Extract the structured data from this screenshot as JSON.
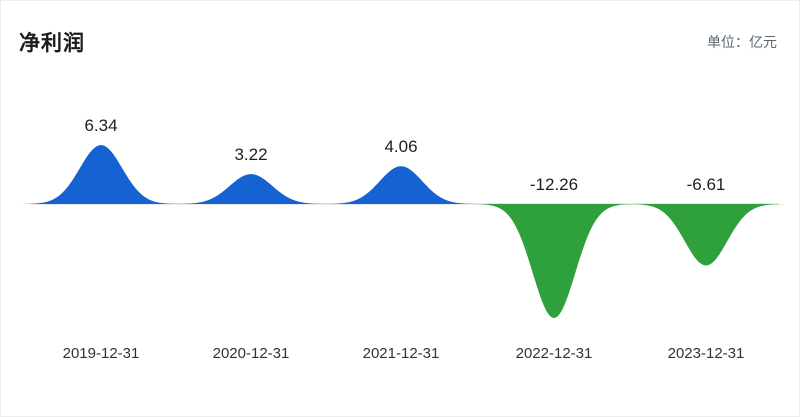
{
  "header": {
    "title": "净利润",
    "unit_label": "单位：亿元"
  },
  "chart_data": {
    "type": "area",
    "title": "净利润",
    "unit": "亿元",
    "categories": [
      "2019-12-31",
      "2020-12-31",
      "2021-12-31",
      "2022-12-31",
      "2023-12-31"
    ],
    "values": [
      6.34,
      3.22,
      4.06,
      -12.26,
      -6.61
    ],
    "value_labels": [
      "6.34",
      "3.22",
      "4.06",
      "-12.26",
      "-6.61"
    ],
    "xlabel": "",
    "ylabel": "",
    "grid": "off",
    "legend": "none",
    "positive_color": "#1562d2",
    "negative_color": "#2fa13c",
    "baseline_color": "#cfcfcf",
    "label_color": "#1f1f1f"
  }
}
